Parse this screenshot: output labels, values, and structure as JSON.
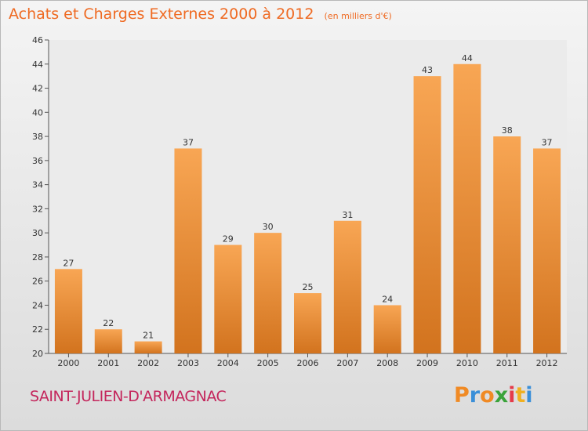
{
  "chart_data": {
    "type": "bar",
    "title": "Achats et Charges Externes 2000 à 2012",
    "subtitle": "(en milliers d'€)",
    "categories": [
      "2000",
      "2001",
      "2002",
      "2003",
      "2004",
      "2005",
      "2006",
      "2007",
      "2008",
      "2009",
      "2010",
      "2011",
      "2012"
    ],
    "values": [
      27,
      22,
      21,
      37,
      29,
      30,
      25,
      31,
      24,
      43,
      44,
      38,
      37
    ],
    "ylim": [
      20,
      46
    ],
    "yticks": [
      20,
      22,
      24,
      26,
      28,
      30,
      32,
      34,
      36,
      38,
      40,
      42,
      44,
      46
    ],
    "grid": false,
    "bar_color_top": "#f8a654",
    "bar_color_bottom": "#d2731e"
  },
  "footer": {
    "commune": "SAINT-JULIEN-D'ARMAGNAC",
    "logo_letters": [
      "P",
      "r",
      "o",
      "x",
      "i",
      "t",
      "i"
    ],
    "logo_colors": [
      "#f08a24",
      "#3a8fd8",
      "#f08a24",
      "#3aa33a",
      "#e53b4a",
      "#f0b020",
      "#3a8fd8"
    ]
  }
}
